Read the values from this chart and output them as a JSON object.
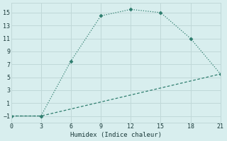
{
  "line1_x": [
    0,
    3,
    6,
    9,
    12,
    15,
    18,
    21
  ],
  "line1_y": [
    -1,
    -1,
    7.5,
    14.5,
    15.5,
    15,
    11,
    5.5
  ],
  "line2_x": [
    0,
    3,
    21
  ],
  "line2_y": [
    -1,
    -1,
    5.5
  ],
  "color": "#2e7d6e",
  "xlabel": "Humidex (Indice chaleur)",
  "bg_color": "#d8eeee",
  "grid_color": "#c0d8d8",
  "xlim": [
    0,
    21
  ],
  "ylim": [
    -2,
    16.5
  ],
  "xticks": [
    0,
    3,
    6,
    9,
    12,
    15,
    18,
    21
  ],
  "yticks": [
    -1,
    1,
    3,
    5,
    7,
    9,
    11,
    13,
    15
  ]
}
